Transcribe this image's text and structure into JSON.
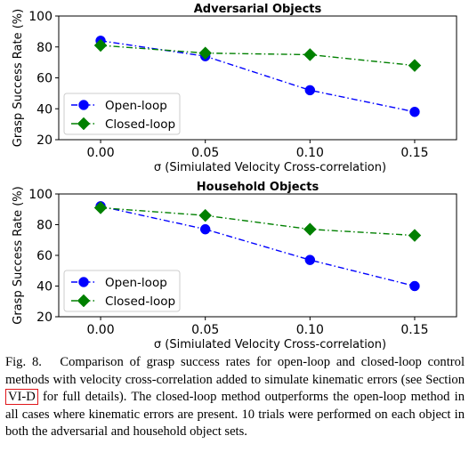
{
  "chart_data": [
    {
      "type": "line",
      "title": "Adversarial Objects",
      "xlabel": "σ (Simiulated Velocity Cross-correlation)",
      "ylabel": "Grasp Success Rate (%)",
      "x": [
        0.0,
        0.05,
        0.1,
        0.15
      ],
      "xtick_labels": [
        "0.00",
        "0.05",
        "0.10",
        "0.15"
      ],
      "xlim": [
        -0.02,
        0.17
      ],
      "ylim": [
        20,
        100
      ],
      "yticks": [
        20,
        40,
        60,
        80,
        100
      ],
      "legend": "lower-left",
      "series": [
        {
          "name": "Open-loop",
          "values": [
            84,
            74,
            52,
            38
          ],
          "color": "#0000ff",
          "marker": "circle"
        },
        {
          "name": "Closed-loop",
          "values": [
            81,
            76,
            75,
            68
          ],
          "color": "#008000",
          "marker": "diamond"
        }
      ]
    },
    {
      "type": "line",
      "title": "Household Objects",
      "xlabel": "σ (Simiulated Velocity Cross-correlation)",
      "ylabel": "Grasp Success Rate (%)",
      "x": [
        0.0,
        0.05,
        0.1,
        0.15
      ],
      "xtick_labels": [
        "0.00",
        "0.05",
        "0.10",
        "0.15"
      ],
      "xlim": [
        -0.02,
        0.17
      ],
      "ylim": [
        20,
        100
      ],
      "yticks": [
        20,
        40,
        60,
        80,
        100
      ],
      "legend": "lower-left",
      "series": [
        {
          "name": "Open-loop",
          "values": [
            92,
            77,
            57,
            40
          ],
          "color": "#0000ff",
          "marker": "circle"
        },
        {
          "name": "Closed-loop",
          "values": [
            91,
            86,
            77,
            73
          ],
          "color": "#008000",
          "marker": "diamond"
        }
      ]
    }
  ],
  "caption": {
    "label": "Fig. 8.",
    "text_before_ref": "Comparison of grasp success rates for open-loop and closed-loop control methods with velocity cross-correlation added to simulate kinematic errors (see Section",
    "ref": "VI-D",
    "text_after_ref": "for full details). The closed-loop method outperforms the open-loop method in all cases where kinematic errors are present. 10 trials were performed on each object in both the adversarial and household object sets."
  }
}
